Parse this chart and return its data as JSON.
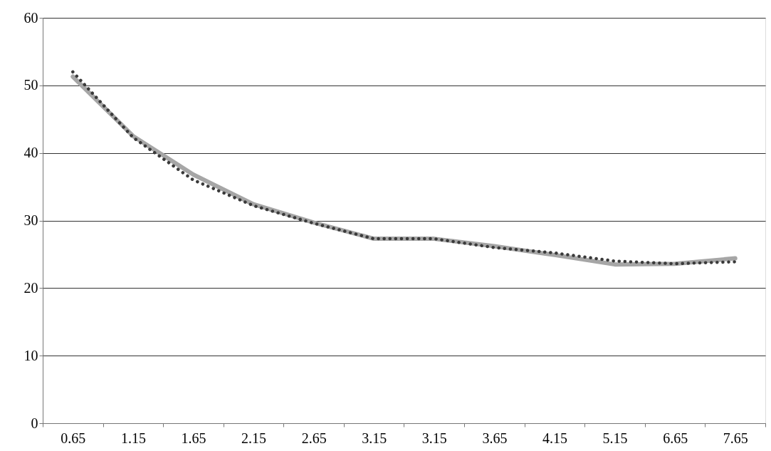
{
  "chart_data": {
    "type": "line",
    "categories": [
      "0.65",
      "1.15",
      "1.65",
      "2.15",
      "2.65",
      "3.15",
      "3.15",
      "3.65",
      "4.15",
      "5.15",
      "6.65",
      "7.65"
    ],
    "series": [
      {
        "color": "#a6a6a6",
        "line_style": "solid",
        "values": [
          51.3,
          42.5,
          36.8,
          32.4,
          29.7,
          27.3,
          27.3,
          26.2,
          24.9,
          23.5,
          23.6,
          24.4
        ]
      },
      {
        "color": "#3a3a3a",
        "line_style": "dotted",
        "values": [
          52.0,
          42.3,
          36.0,
          32.2,
          29.6,
          27.3,
          27.3,
          26.0,
          25.2,
          24.0,
          23.6,
          23.9
        ]
      }
    ],
    "ylim": [
      0,
      60
    ],
    "yticks": [
      0,
      10,
      20,
      30,
      40,
      50,
      60
    ],
    "grid": "y"
  }
}
